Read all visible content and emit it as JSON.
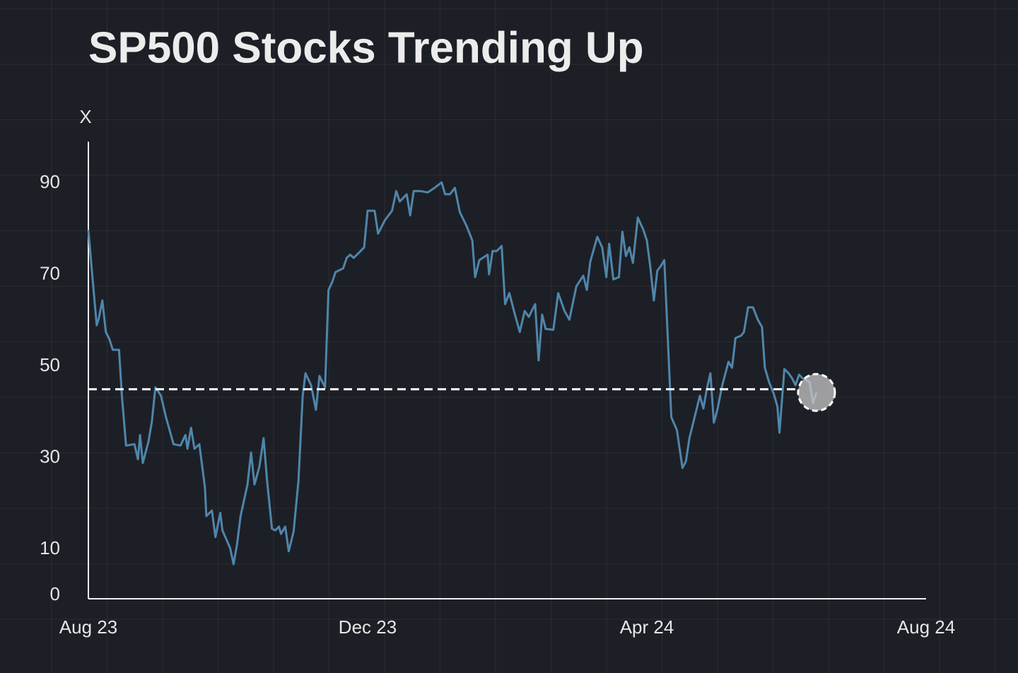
{
  "chart_data": {
    "type": "line",
    "title": "SP500 Stocks Trending Up",
    "y_label": "X",
    "xlim": [
      0,
      12
    ],
    "xticks": [
      {
        "value": 0,
        "label": "Aug 23"
      },
      {
        "value": 4,
        "label": "Dec 23"
      },
      {
        "value": 8,
        "label": "Apr 24"
      },
      {
        "value": 12,
        "label": "Aug 24"
      }
    ],
    "ylim": [
      0,
      100
    ],
    "yticks": [
      0,
      10,
      30,
      50,
      70,
      90
    ],
    "hline": 45,
    "color": "#4f86ab",
    "x": [
      0,
      0.05,
      0.12,
      0.15,
      0.2,
      0.25,
      0.3,
      0.35,
      0.44,
      0.48,
      0.54,
      0.66,
      0.71,
      0.74,
      0.78,
      0.86,
      0.91,
      0.96,
      1.04,
      1.11,
      1.22,
      1.32,
      1.39,
      1.42,
      1.47,
      1.52,
      1.59,
      1.67,
      1.69,
      1.77,
      1.82,
      1.89,
      1.92,
      2.03,
      2.08,
      2.13,
      2.18,
      2.28,
      2.33,
      2.38,
      2.45,
      2.51,
      2.56,
      2.63,
      2.68,
      2.73,
      2.76,
      2.82,
      2.87,
      2.94,
      3.01,
      3.07,
      3.11,
      3.19,
      3.26,
      3.31,
      3.39,
      3.44,
      3.49,
      3.54,
      3.65,
      3.7,
      3.75,
      3.8,
      3.9,
      3.95,
      4.0,
      4.1,
      4.15,
      4.25,
      4.35,
      4.41,
      4.46,
      4.56,
      4.61,
      4.66,
      4.76,
      4.86,
      4.96,
      5.06,
      5.11,
      5.18,
      5.25,
      5.32,
      5.42,
      5.5,
      5.54,
      5.6,
      5.72,
      5.74,
      5.79,
      5.85,
      5.92,
      5.97,
      6.03,
      6.11,
      6.18,
      6.25,
      6.31,
      6.35,
      6.4,
      6.45,
      6.5,
      6.55,
      6.66,
      6.73,
      6.82,
      6.89,
      6.99,
      7.09,
      7.14,
      7.19,
      7.29,
      7.36,
      7.42,
      7.46,
      7.52,
      7.6,
      7.65,
      7.7,
      7.75,
      7.8,
      7.87,
      7.95,
      8.0,
      8.05,
      8.1,
      8.15,
      8.2,
      8.25,
      8.3,
      8.35,
      8.43,
      8.51,
      8.56,
      8.61,
      8.71,
      8.76,
      8.81,
      8.86,
      8.91,
      8.96,
      9.01,
      9.08,
      9.17,
      9.22,
      9.27,
      9.35,
      9.39,
      9.45,
      9.52,
      9.59,
      9.65,
      9.69,
      9.75,
      9.82,
      9.87,
      9.9,
      9.97,
      10.03,
      10.08,
      10.13,
      10.18,
      10.23,
      10.33,
      10.38,
      10.43
    ],
    "values": [
      79.8,
      71,
      59,
      60.5,
      64.4,
      57.5,
      56,
      53.6,
      53.6,
      43.6,
      32.7,
      33,
      29.7,
      35,
      28.9,
      33.5,
      38,
      45.4,
      43.6,
      39,
      33,
      32.7,
      35,
      32,
      36.6,
      32,
      33,
      23.5,
      17.3,
      18.5,
      12.7,
      18,
      14.2,
      10.3,
      6.8,
      11.1,
      17.3,
      24.2,
      31.2,
      24.2,
      28.1,
      34.3,
      25,
      14.5,
      14.2,
      15,
      13.4,
      15,
      9.6,
      13.9,
      25,
      43.6,
      48.5,
      45.9,
      40.5,
      47.9,
      45.4,
      66.7,
      68.3,
      70.6,
      71.4,
      73.7,
      74.4,
      73.7,
      75.2,
      76,
      84,
      84,
      79,
      82,
      84,
      88.3,
      86,
      87.6,
      83,
      88.3,
      88.3,
      88,
      89,
      90.2,
      87.6,
      87.6,
      89,
      83.7,
      80.6,
      77.5,
      69.5,
      73.2,
      74.4,
      70.1,
      75.2,
      75.2,
      76.3,
      63.6,
      66,
      61.3,
      57.5,
      62.1,
      60.8,
      62.1,
      63.6,
      51.3,
      61.3,
      58.2,
      58,
      66,
      62.1,
      60.2,
      67.5,
      69.8,
      66.7,
      72.9,
      78.3,
      76,
      69.5,
      76.8,
      69,
      69.5,
      79.4,
      74.1,
      76,
      72.6,
      82.5,
      79.8,
      77.5,
      71.7,
      64.4,
      70.9,
      71.9,
      73.2,
      56.2,
      38.9,
      36.1,
      27.8,
      29.3,
      34.3,
      40.5,
      43.6,
      40.8,
      45.1,
      48.5,
      37.7,
      40.5,
      45.9,
      51,
      49.7,
      56.2,
      56.7,
      57.5,
      62.9,
      62.9,
      60.2,
      58.6,
      49.7,
      46.6,
      43.9,
      41.2,
      35.5,
      49.4,
      48.5,
      47.4,
      45.9,
      48.2,
      47.4,
      46.6,
      42,
      44.3
    ]
  }
}
